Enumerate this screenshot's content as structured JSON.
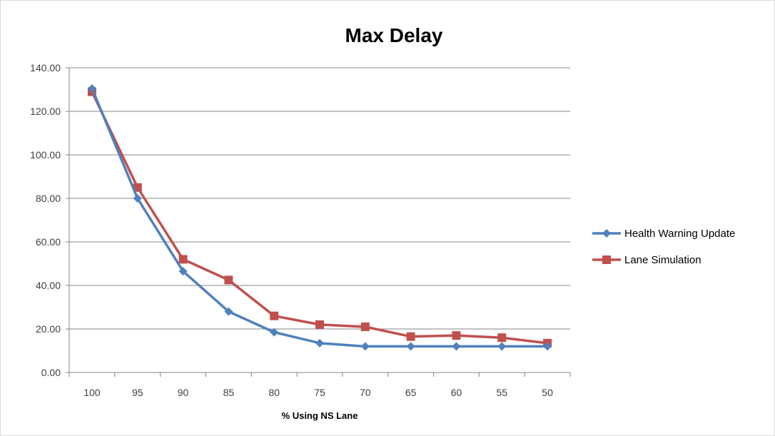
{
  "chart_data": {
    "type": "line",
    "title": "Max Delay",
    "xlabel": "% Using NS Lane",
    "ylabel": "",
    "categories": [
      "100",
      "95",
      "90",
      "85",
      "80",
      "75",
      "70",
      "65",
      "60",
      "55",
      "50"
    ],
    "y_ticks": [
      "0.00",
      "20.00",
      "40.00",
      "60.00",
      "80.00",
      "100.00",
      "120.00",
      "140.00"
    ],
    "ylim": [
      0,
      140
    ],
    "grid": true,
    "legend_position": "right",
    "series": [
      {
        "name": "Health Warning Update",
        "color": "#4f81bd",
        "marker": "diamond",
        "values": [
          130.5,
          80,
          46.5,
          28,
          18.5,
          13.5,
          12,
          12,
          12,
          12,
          12
        ]
      },
      {
        "name": "Lane Simulation",
        "color": "#c0504d",
        "marker": "square",
        "values": [
          129,
          85,
          52,
          42.5,
          26,
          22,
          21,
          16.5,
          17,
          16,
          13.5
        ]
      }
    ]
  }
}
